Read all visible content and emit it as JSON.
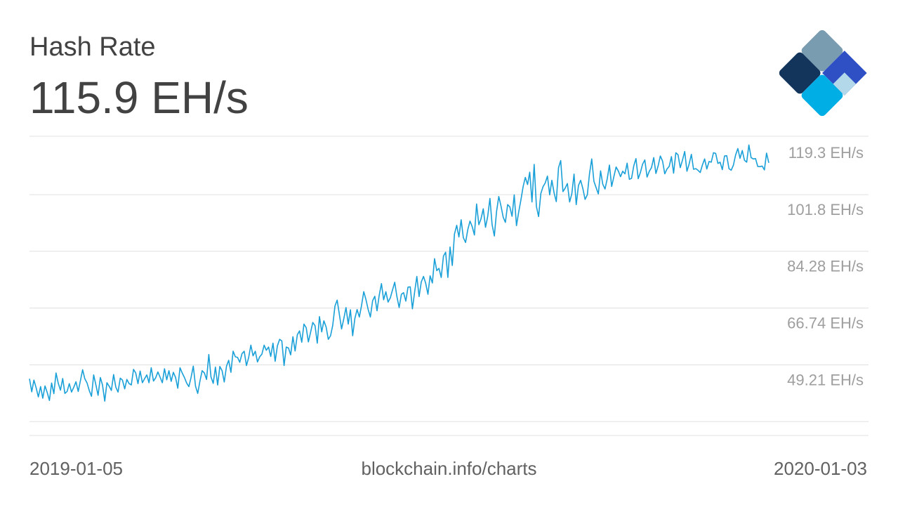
{
  "header": {
    "title": "Hash Rate",
    "current_value": "115.9 EH/s"
  },
  "footer": {
    "start_date": "2019-01-05",
    "source": "blockchain.info/charts",
    "end_date": "2020-01-03"
  },
  "colors": {
    "line": "#1aa0d8",
    "grid": "#e0e0e0",
    "tick_text": "#9e9e9e",
    "text": "#424242",
    "logo": [
      "#7a9cb0",
      "#13355c",
      "#2f4fc4",
      "#00aee6",
      "#b2d8ea"
    ]
  },
  "chart_data": {
    "type": "line",
    "title": "Hash Rate",
    "x_range": [
      "2019-01-05",
      "2020-01-03"
    ],
    "y_tick_labels": [
      "119.3 EH/s",
      "101.8 EH/s",
      "84.28 EH/s",
      "66.74 EH/s",
      "49.21 EH/s"
    ],
    "y_ticks": [
      119.3,
      101.8,
      84.28,
      66.74,
      49.21
    ],
    "ylim": [
      31.7,
      124.1
    ],
    "grid": true,
    "x_label_placement": "bottom-corners",
    "series": [
      {
        "values": [
          49.2,
          45.2,
          48.8,
          46.4,
          43.6,
          46.8,
          43.2,
          47.0,
          45.0,
          42.5,
          47.9,
          44.6,
          51.0,
          47.8,
          45.7,
          49.3,
          44.7,
          45.3,
          47.7,
          45.1,
          46.6,
          48.3,
          45.3,
          48.6,
          52.0,
          49.2,
          47.9,
          45.6,
          43.8,
          50.4,
          47.3,
          44.1,
          49.6,
          47.3,
          42.3,
          48.0,
          46.9,
          45.6,
          50.5,
          46.6,
          45.1,
          49.4,
          48.8,
          46.1,
          49.0,
          47.7,
          47.3,
          52.1,
          51.0,
          47.7,
          51.6,
          48.0,
          49.2,
          50.4,
          48.0,
          52.6,
          48.5,
          49.5,
          51.3,
          49.7,
          48.0,
          52.3,
          48.9,
          51.7,
          48.4,
          51.2,
          49.6,
          46.3,
          52.6,
          51.0,
          49.6,
          47.9,
          46.8,
          49.6,
          53.1,
          46.9,
          44.7,
          48.5,
          51.7,
          51.0,
          49.0,
          56.7,
          49.8,
          47.8,
          52.8,
          47.3,
          53.0,
          51.7,
          48.2,
          53.1,
          54.9,
          51.2,
          57.7,
          56.0,
          55.8,
          54.3,
          57.0,
          57.7,
          53.3,
          55.7,
          59.6,
          56.3,
          57.7,
          54.4,
          56.0,
          56.8,
          59.6,
          58.0,
          59.0,
          56.1,
          60.2,
          54.6,
          59.4,
          61.4,
          60.9,
          53.3,
          59.0,
          58.7,
          56.6,
          62.2,
          57.8,
          62.8,
          64.0,
          60.5,
          66.1,
          65.0,
          60.6,
          63.6,
          66.6,
          65.6,
          60.2,
          68.4,
          63.7,
          67.1,
          65.2,
          61.4,
          62.5,
          65.7,
          71.7,
          73.5,
          69.0,
          64.6,
          67.8,
          71.2,
          66.1,
          70.5,
          62.5,
          67.8,
          70.6,
          68.3,
          71.8,
          76.1,
          73.7,
          70.6,
          68.3,
          73.3,
          74.7,
          70.2,
          75.0,
          78.6,
          73.6,
          76.1,
          72.9,
          74.2,
          76.6,
          79.0,
          74.6,
          71.2,
          75.3,
          75.8,
          73.2,
          77.5,
          77.6,
          70.8,
          76.1,
          80.8,
          74.6,
          79.1,
          80.8,
          78.7,
          75.3,
          81.0,
          78.8,
          86.3,
          82.6,
          83.3,
          80.5,
          87.1,
          88.3,
          80.5,
          89.9,
          84.2,
          93.9,
          96.6,
          93.0,
          98.3,
          92.8,
          91.3,
          95.2,
          97.9,
          96.2,
          93.6,
          103.2,
          96.8,
          98.6,
          101.7,
          96.0,
          99.3,
          104.9,
          96.8,
          93.3,
          100.8,
          105.5,
          102.6,
          99.1,
          97.5,
          103.0,
          102.3,
          99.4,
          106.0,
          96.5,
          100.6,
          104.4,
          108.6,
          111.4,
          109.2,
          113.0,
          103.8,
          115.4,
          102.4,
          99.3,
          106.4,
          108.5,
          109.7,
          111.8,
          106.0,
          110.5,
          106.6,
          103.9,
          114.4,
          116.6,
          107.0,
          108.1,
          109.5,
          103.8,
          106.3,
          112.4,
          103.0,
          108.9,
          110.5,
          107.9,
          104.6,
          106.0,
          112.5,
          117.1,
          110.2,
          108.2,
          106.3,
          113.4,
          109.3,
          107.8,
          111.0,
          115.2,
          108.6,
          111.6,
          114.6,
          113.4,
          111.6,
          113.3,
          112.5,
          115.8,
          110.8,
          111.1,
          115.0,
          117.2,
          111.0,
          112.9,
          115.5,
          116.8,
          111.5,
          113.3,
          114.4,
          117.5,
          112.6,
          115.0,
          118.0,
          116.4,
          112.5,
          114.0,
          114.8,
          117.8,
          112.7,
          119.0,
          118.4,
          114.4,
          116.7,
          119.4,
          113.3,
          115.5,
          118.5,
          113.9,
          114.1,
          113.6,
          112.9,
          115.2,
          117.1,
          114.0,
          116.3,
          116.1,
          119.0,
          118.8,
          115.7,
          116.1,
          113.8,
          118.0,
          118.1,
          114.1,
          113.6,
          115.2,
          118.3,
          120.3,
          117.3,
          119.7,
          116.7,
          116.1,
          121.4,
          117.5,
          117.1,
          117.2,
          114.8,
          114.7,
          114.9,
          113.7,
          118.9,
          115.9
        ]
      }
    ]
  }
}
